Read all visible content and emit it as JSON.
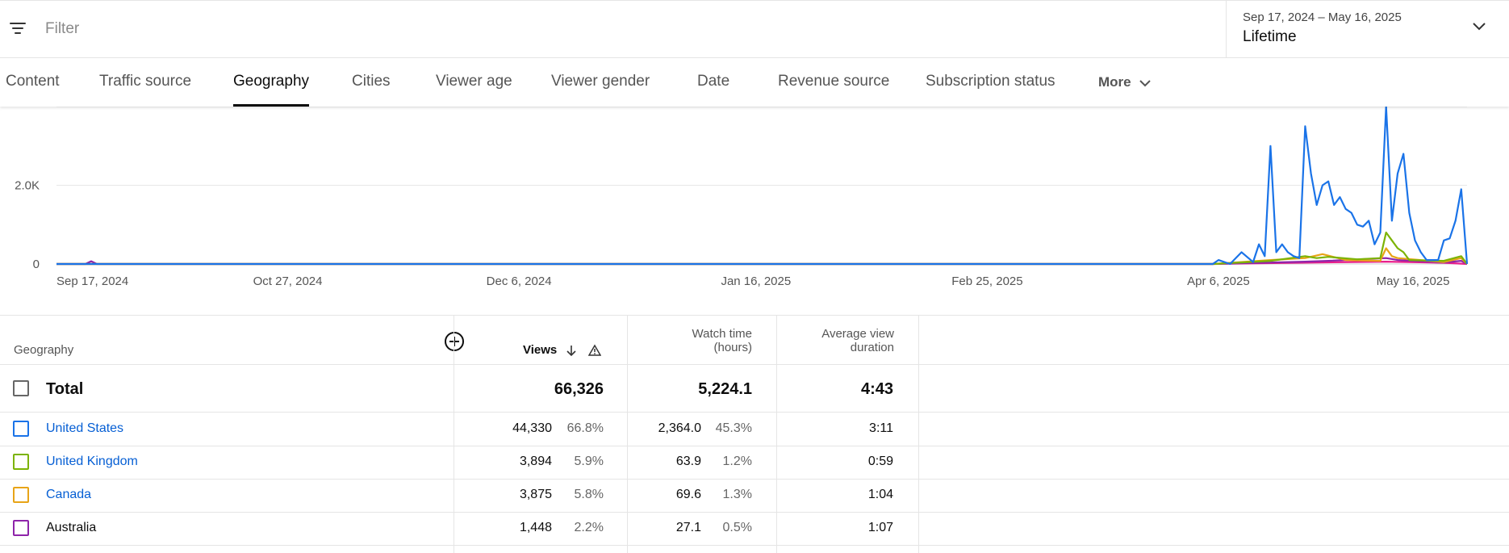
{
  "filter": {
    "placeholder": "Filter"
  },
  "date_picker": {
    "range": "Sep 17, 2024 – May 16, 2025",
    "period": "Lifetime"
  },
  "tabs": [
    {
      "label": "Content"
    },
    {
      "label": "Traffic source"
    },
    {
      "label": "Geography",
      "active": true
    },
    {
      "label": "Cities"
    },
    {
      "label": "Viewer age"
    },
    {
      "label": "Viewer gender"
    },
    {
      "label": "Date"
    },
    {
      "label": "Revenue source"
    },
    {
      "label": "Subscription status"
    },
    {
      "label": "More"
    }
  ],
  "chart_data": {
    "type": "line",
    "y_ticks": [
      "0",
      "2.0K"
    ],
    "x_ticks": [
      "Sep 17, 2024",
      "Oct 27, 2024",
      "Dec 6, 2024",
      "Jan 16, 2025",
      "Feb 25, 2025",
      "Apr 6, 2025",
      "May 16, 2025"
    ],
    "ylim": [
      0,
      4000
    ],
    "grid": true,
    "series": [
      {
        "color": "#1a73e8",
        "points": [
          [
            0,
            0
          ],
          [
            200,
            0
          ],
          [
            201,
            100
          ],
          [
            203,
            0
          ],
          [
            205,
            300
          ],
          [
            207,
            50
          ],
          [
            208,
            500
          ],
          [
            209,
            200
          ],
          [
            210,
            3000
          ],
          [
            211,
            300
          ],
          [
            212,
            500
          ],
          [
            213,
            300
          ],
          [
            214,
            200
          ],
          [
            215,
            150
          ],
          [
            216,
            3500
          ],
          [
            217,
            2300
          ],
          [
            218,
            1500
          ],
          [
            219,
            2000
          ],
          [
            220,
            2100
          ],
          [
            221,
            1500
          ],
          [
            222,
            1700
          ],
          [
            223,
            1400
          ],
          [
            224,
            1300
          ],
          [
            225,
            1000
          ],
          [
            226,
            950
          ],
          [
            227,
            1100
          ],
          [
            228,
            500
          ],
          [
            229,
            800
          ],
          [
            230,
            4000
          ],
          [
            231,
            1100
          ],
          [
            232,
            2300
          ],
          [
            233,
            2800
          ],
          [
            234,
            1300
          ],
          [
            235,
            600
          ],
          [
            236,
            300
          ],
          [
            237,
            100
          ],
          [
            238,
            100
          ],
          [
            239,
            100
          ],
          [
            240,
            600
          ],
          [
            241,
            650
          ],
          [
            242,
            1100
          ],
          [
            243,
            1900
          ],
          [
            244,
            0
          ]
        ]
      },
      {
        "color": "#7cb305",
        "points": [
          [
            0,
            0
          ],
          [
            200,
            0
          ],
          [
            210,
            80
          ],
          [
            216,
            200
          ],
          [
            218,
            150
          ],
          [
            220,
            180
          ],
          [
            225,
            120
          ],
          [
            229,
            150
          ],
          [
            230,
            800
          ],
          [
            231,
            600
          ],
          [
            232,
            400
          ],
          [
            233,
            300
          ],
          [
            234,
            100
          ],
          [
            240,
            80
          ],
          [
            243,
            200
          ],
          [
            244,
            0
          ]
        ]
      },
      {
        "color": "#e8a417",
        "points": [
          [
            0,
            0
          ],
          [
            200,
            0
          ],
          [
            210,
            100
          ],
          [
            216,
            150
          ],
          [
            219,
            250
          ],
          [
            223,
            100
          ],
          [
            229,
            80
          ],
          [
            230,
            400
          ],
          [
            231,
            200
          ],
          [
            232,
            150
          ],
          [
            240,
            50
          ],
          [
            243,
            150
          ],
          [
            244,
            0
          ]
        ]
      },
      {
        "color": "#8e24aa",
        "points": [
          [
            0,
            0
          ],
          [
            5,
            0
          ],
          [
            6,
            70
          ],
          [
            7,
            0
          ],
          [
            200,
            0
          ],
          [
            216,
            60
          ],
          [
            220,
            80
          ],
          [
            230,
            150
          ],
          [
            232,
            100
          ],
          [
            240,
            40
          ],
          [
            243,
            80
          ],
          [
            244,
            0
          ]
        ]
      },
      {
        "color": "#e91e8a",
        "points": [
          [
            0,
            0
          ],
          [
            200,
            0
          ],
          [
            218,
            40
          ],
          [
            230,
            60
          ],
          [
            240,
            30
          ],
          [
            244,
            0
          ]
        ]
      }
    ]
  },
  "table": {
    "headers": {
      "geography": "Geography",
      "views": "Views",
      "watch_time_l1": "Watch time",
      "watch_time_l2": "(hours)",
      "avd_l1": "Average view",
      "avd_l2": "duration"
    },
    "total": {
      "label": "Total",
      "views": "66,326",
      "watch_time": "5,224.1",
      "avd": "4:43"
    },
    "rows": [
      {
        "name": "United States",
        "link": true,
        "color": "#1a73e8",
        "views": "44,330",
        "views_pct": "66.8%",
        "watch_time": "2,364.0",
        "watch_pct": "45.3%",
        "avd": "3:11"
      },
      {
        "name": "United Kingdom",
        "link": true,
        "color": "#7cb305",
        "views": "3,894",
        "views_pct": "5.9%",
        "watch_time": "63.9",
        "watch_pct": "1.2%",
        "avd": "0:59"
      },
      {
        "name": "Canada",
        "link": true,
        "color": "#e8a417",
        "views": "3,875",
        "views_pct": "5.8%",
        "watch_time": "69.6",
        "watch_pct": "1.3%",
        "avd": "1:04"
      },
      {
        "name": "Australia",
        "link": false,
        "color": "#8e24aa",
        "views": "1,448",
        "views_pct": "2.2%",
        "watch_time": "27.1",
        "watch_pct": "0.5%",
        "avd": "1:07"
      }
    ]
  }
}
